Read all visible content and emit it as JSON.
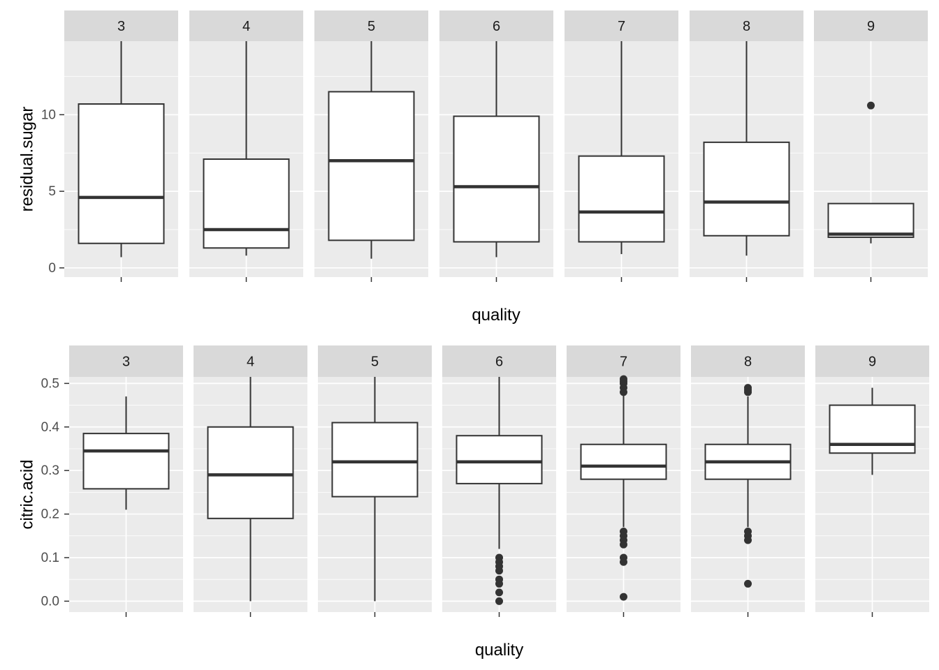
{
  "chart_data": [
    {
      "type": "boxplot",
      "facet_by": "quality",
      "facets": [
        "3",
        "4",
        "5",
        "6",
        "7",
        "8",
        "9"
      ],
      "xlabel": "quality",
      "ylabel": "residual.sugar",
      "ylim": [
        -0.6,
        14.8
      ],
      "yticks": [
        0,
        5,
        10
      ],
      "ytick_labels": [
        "0",
        "5",
        "10"
      ],
      "boxes": [
        {
          "facet": "3",
          "whisker_low": 0.7,
          "q1": 1.6,
          "median": 4.6,
          "q3": 10.7,
          "whisker_high": 14.8,
          "outliers": []
        },
        {
          "facet": "4",
          "whisker_low": 0.8,
          "q1": 1.3,
          "median": 2.5,
          "q3": 7.1,
          "whisker_high": 14.8,
          "outliers": []
        },
        {
          "facet": "5",
          "whisker_low": 0.6,
          "q1": 1.8,
          "median": 7.0,
          "q3": 11.5,
          "whisker_high": 14.8,
          "outliers": []
        },
        {
          "facet": "6",
          "whisker_low": 0.7,
          "q1": 1.7,
          "median": 5.3,
          "q3": 9.9,
          "whisker_high": 14.8,
          "outliers": []
        },
        {
          "facet": "7",
          "whisker_low": 0.9,
          "q1": 1.7,
          "median": 3.65,
          "q3": 7.3,
          "whisker_high": 14.8,
          "outliers": []
        },
        {
          "facet": "8",
          "whisker_low": 0.8,
          "q1": 2.1,
          "median": 4.3,
          "q3": 8.2,
          "whisker_high": 14.8,
          "outliers": []
        },
        {
          "facet": "9",
          "whisker_low": 1.6,
          "q1": 2.0,
          "median": 2.2,
          "q3": 4.2,
          "whisker_high": 4.2,
          "outliers": [
            10.6
          ]
        }
      ]
    },
    {
      "type": "boxplot",
      "facet_by": "quality",
      "facets": [
        "3",
        "4",
        "5",
        "6",
        "7",
        "8",
        "9"
      ],
      "xlabel": "quality",
      "ylabel": "citric.acid",
      "ylim": [
        -0.025,
        0.515
      ],
      "yticks": [
        0.0,
        0.1,
        0.2,
        0.3,
        0.4,
        0.5
      ],
      "ytick_labels": [
        "0.0",
        "0.1",
        "0.2",
        "0.3",
        "0.4",
        "0.5"
      ],
      "boxes": [
        {
          "facet": "3",
          "whisker_low": 0.21,
          "q1": 0.258,
          "median": 0.345,
          "q3": 0.385,
          "whisker_high": 0.47,
          "outliers": []
        },
        {
          "facet": "4",
          "whisker_low": 0.0,
          "q1": 0.19,
          "median": 0.29,
          "q3": 0.4,
          "whisker_high": 0.515,
          "outliers": []
        },
        {
          "facet": "5",
          "whisker_low": 0.0,
          "q1": 0.24,
          "median": 0.32,
          "q3": 0.41,
          "whisker_high": 0.515,
          "outliers": []
        },
        {
          "facet": "6",
          "whisker_low": 0.12,
          "q1": 0.27,
          "median": 0.32,
          "q3": 0.38,
          "whisker_high": 0.515,
          "outliers": [
            0.1,
            0.09,
            0.08,
            0.07,
            0.05,
            0.04,
            0.02,
            0.0
          ]
        },
        {
          "facet": "7",
          "whisker_low": 0.17,
          "q1": 0.28,
          "median": 0.31,
          "q3": 0.36,
          "whisker_high": 0.49,
          "outliers": [
            0.51,
            0.505,
            0.5,
            0.49,
            0.48,
            0.16,
            0.15,
            0.14,
            0.13,
            0.1,
            0.09,
            0.01
          ]
        },
        {
          "facet": "8",
          "whisker_low": 0.17,
          "q1": 0.28,
          "median": 0.32,
          "q3": 0.36,
          "whisker_high": 0.47,
          "outliers": [
            0.49,
            0.485,
            0.48,
            0.16,
            0.15,
            0.14,
            0.04
          ]
        },
        {
          "facet": "9",
          "whisker_low": 0.29,
          "q1": 0.34,
          "median": 0.36,
          "q3": 0.45,
          "whisker_high": 0.49,
          "outliers": []
        }
      ]
    }
  ],
  "colors": {
    "panel_background": "#ebebeb",
    "strip_background": "#d9d9d9",
    "gridline": "#ffffff",
    "box_fill": "#ffffff",
    "box_stroke": "#333333",
    "point": "#333333"
  }
}
